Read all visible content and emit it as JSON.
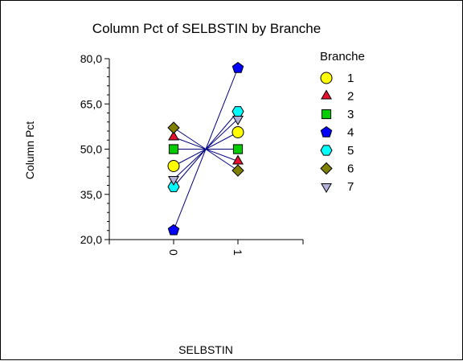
{
  "chart_data": {
    "type": "line",
    "title": "Column Pct of SELBSTIN by Branche",
    "xlabel": "SELBSTIN",
    "ylabel": "Column Pct",
    "x": [
      "0",
      "1"
    ],
    "ylim": [
      20,
      80
    ],
    "yticks": [
      "20,0",
      "35,0",
      "50,0",
      "65,0",
      "80,0"
    ],
    "ytick_values": [
      20,
      35,
      50,
      65,
      80
    ],
    "grid": false,
    "legend_title": "Branche",
    "legend_position": "right",
    "series": [
      {
        "name": "1",
        "marker": "circle",
        "color": "#FFFF00",
        "values": [
          44.4,
          55.6
        ]
      },
      {
        "name": "2",
        "marker": "triangle-up",
        "color": "#E8112D",
        "values": [
          54.0,
          46.0
        ]
      },
      {
        "name": "3",
        "marker": "square",
        "color": "#00CC00",
        "values": [
          50.0,
          50.0
        ]
      },
      {
        "name": "4",
        "marker": "pentagon",
        "color": "#0000FF",
        "values": [
          23.1,
          76.9
        ]
      },
      {
        "name": "5",
        "marker": "hexagon",
        "color": "#00FFFF",
        "values": [
          37.5,
          62.5
        ]
      },
      {
        "name": "6",
        "marker": "diamond",
        "color": "#808000",
        "values": [
          57.1,
          42.9
        ]
      },
      {
        "name": "7",
        "marker": "triangle-down",
        "color": "#B0B0D8",
        "values": [
          40.0,
          60.0
        ]
      }
    ],
    "line_color": "#000080"
  }
}
